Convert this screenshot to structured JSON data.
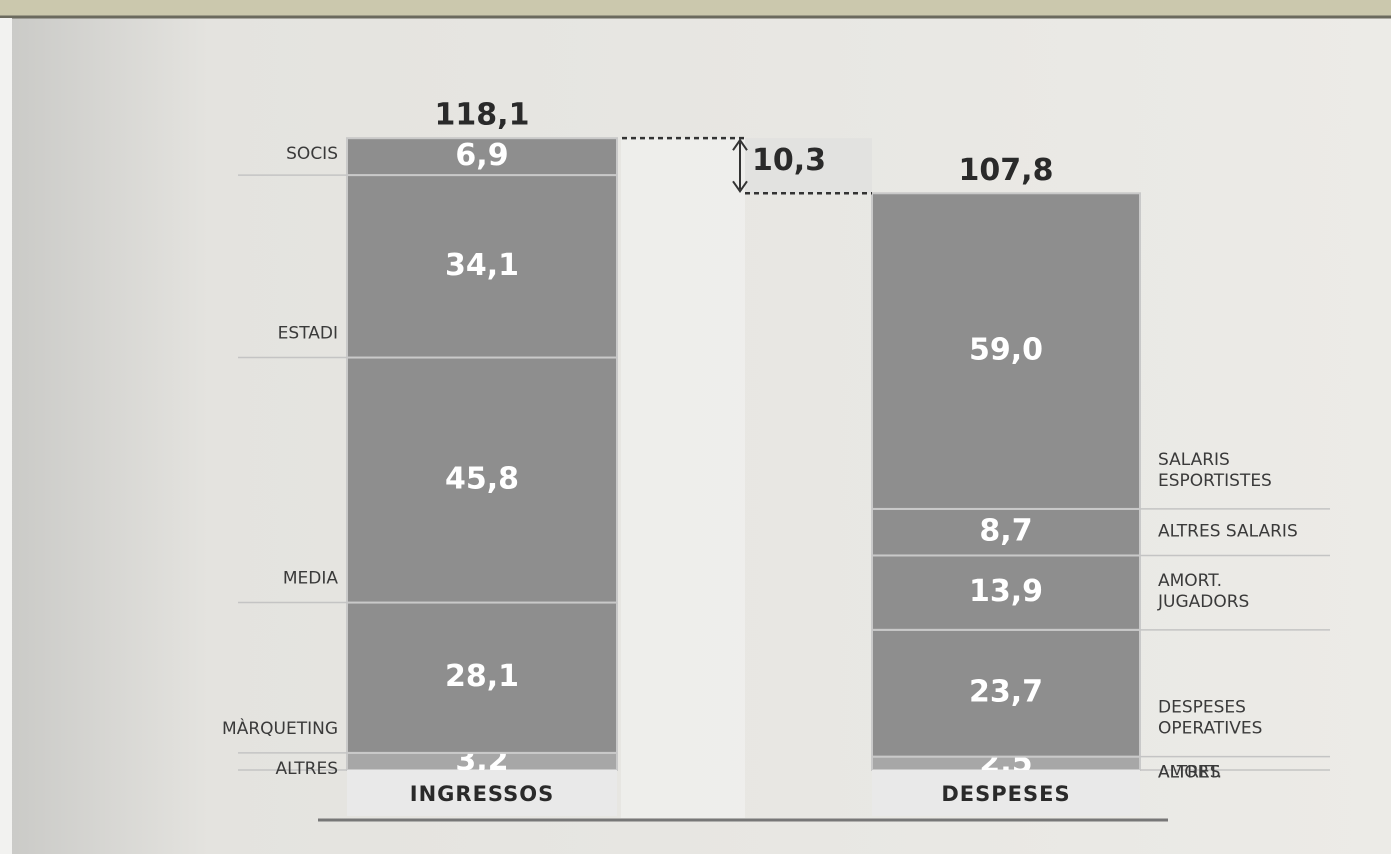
{
  "chart_data": {
    "type": "stacked_bar",
    "bars": [
      {
        "category": "INGRESSOS",
        "total": 118.1,
        "total_label": "118,1",
        "segments": [
          {
            "name": [
              "ALTRES"
            ],
            "value": 3.2,
            "value_label": "3,2",
            "color": "#a7a7a7"
          },
          {
            "name": [
              "MÀRQUETING"
            ],
            "value": 28.1,
            "value_label": "28,1",
            "color": "#8e8e8e"
          },
          {
            "name": [
              "MEDIA"
            ],
            "value": 45.8,
            "value_label": "45,8",
            "color": "#8e8e8e"
          },
          {
            "name": [
              "ESTADI"
            ],
            "value": 34.1,
            "value_label": "34,1",
            "color": "#8e8e8e"
          },
          {
            "name": [
              "SOCIS"
            ],
            "value": 6.9,
            "value_label": "6,9",
            "color": "#8e8e8e"
          }
        ]
      },
      {
        "category": "DESPESES",
        "total": 107.8,
        "total_label": "107,8",
        "segments": [
          {
            "name": [
              "ALTRES",
              "AMORT."
            ],
            "value": 2.5,
            "value_label": "2,5",
            "color": "#a7a7a7"
          },
          {
            "name": [
              "DESPESES",
              "OPERATIVES"
            ],
            "value": 23.7,
            "value_label": "23,7",
            "color": "#8e8e8e"
          },
          {
            "name": [
              "AMORT.",
              "JUGADORS"
            ],
            "value": 13.9,
            "value_label": "13,9",
            "color": "#8e8e8e"
          },
          {
            "name": [
              "ALTRES SALARIS"
            ],
            "value": 8.7,
            "value_label": "8,7",
            "color": "#8e8e8e"
          },
          {
            "name": [
              "SALARIS",
              "ESPORTISTES"
            ],
            "value": 59.0,
            "value_label": "59,0",
            "color": "#8e8e8e"
          }
        ]
      }
    ],
    "difference": {
      "value": 10.3,
      "label": "10,3"
    }
  }
}
